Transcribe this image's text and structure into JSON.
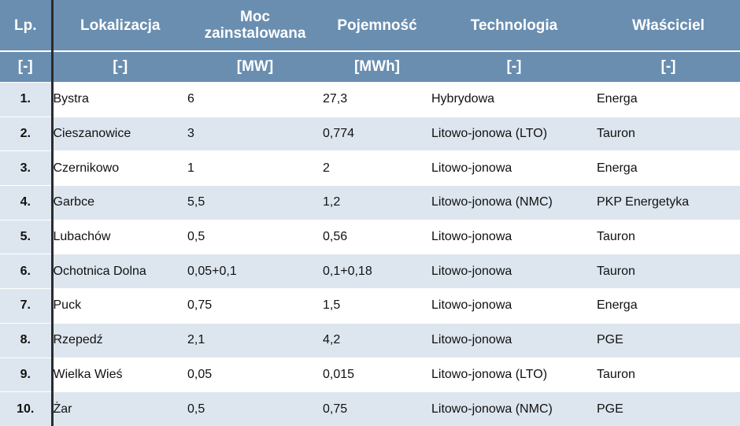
{
  "table": {
    "headers": [
      "Lp.",
      "Lokalizacja",
      "Moc zainstalowana",
      "Pojemność",
      "Technologia",
      "Właściciel"
    ],
    "units": [
      "[-]",
      "[-]",
      "[MW]",
      "[MWh]",
      "[-]",
      "[-]"
    ],
    "rows": [
      [
        "1.",
        "Bystra",
        "6",
        "27,3",
        "Hybrydowa",
        "Energa"
      ],
      [
        "2.",
        "Cieszanowice",
        "3",
        "0,774",
        "Litowo-jonowa (LTO)",
        "Tauron"
      ],
      [
        "3.",
        "Czernikowo",
        "1",
        "2",
        "Litowo-jonowa",
        "Energa"
      ],
      [
        "4.",
        "Garbce",
        "5,5",
        "1,2",
        "Litowo-jonowa (NMC)",
        "PKP Energetyka"
      ],
      [
        "5.",
        "Lubachów",
        "0,5",
        "0,56",
        "Litowo-jonowa",
        "Tauron"
      ],
      [
        "6.",
        "Ochotnica Dolna",
        "0,05+0,1",
        "0,1+0,18",
        "Litowo-jonowa",
        "Tauron"
      ],
      [
        "7.",
        "Puck",
        "0,75",
        "1,5",
        "Litowo-jonowa",
        "Energa"
      ],
      [
        "8.",
        "Rzepedź",
        "2,1",
        "4,2",
        "Litowo-jonowa",
        "PGE"
      ],
      [
        "9.",
        "Wielka Wieś",
        "0,05",
        "0,015",
        "Litowo-jonowa (LTO)",
        "Tauron"
      ],
      [
        "10.",
        "Żar",
        "0,5",
        "0,75",
        "Litowo-jonowa (NMC)",
        "PGE"
      ]
    ]
  },
  "colors": {
    "header_bg": "#6a8eb0",
    "stripe": "#dde6ef",
    "divider": "#2b2b2b"
  }
}
